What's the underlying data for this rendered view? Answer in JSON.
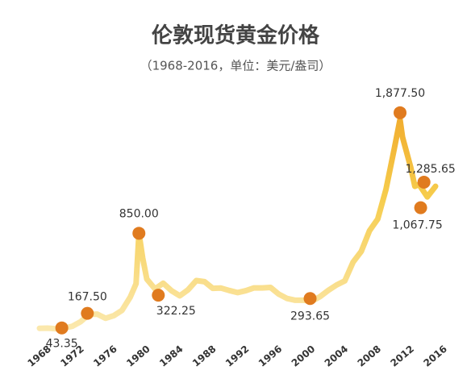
{
  "chart_data": {
    "type": "line",
    "title": "伦敦现货黄金价格",
    "subtitle": "（1968-2016，单位：美元/盎司）",
    "xlim": [
      1968,
      2016
    ],
    "xticks": [
      1968,
      1972,
      1976,
      1980,
      1984,
      1988,
      1992,
      1996,
      2000,
      2004,
      2008,
      2012,
      2016
    ],
    "ylim": [
      0,
      2000
    ],
    "series": [
      {
        "color": "#f6c445",
        "x": [
          1968,
          1969,
          1970,
          1971,
          1972,
          1973,
          1974,
          1975,
          1976,
          1977,
          1978,
          1979,
          1979.7,
          1980.05,
          1980.5,
          1981,
          1982,
          1983,
          1984,
          1985,
          1986,
          1987,
          1988,
          1989,
          1990,
          1991,
          1992,
          1993,
          1994,
          1995,
          1996,
          1997,
          1998,
          1999,
          2000,
          2001,
          2002,
          2003,
          2004,
          2005,
          2006,
          2007,
          2008,
          2009,
          2010,
          2011,
          2011.7,
          2012,
          2013,
          2013.5,
          2014,
          2015,
          2016
        ],
        "values": [
          40,
          41,
          36,
          41,
          58,
          97,
          159,
          161,
          125,
          148,
          193,
          306,
          420,
          850,
          640,
          460,
          375,
          424,
          360,
          317,
          368,
          447,
          437,
          381,
          383,
          362,
          344,
          360,
          384,
          384,
          388,
          331,
          294,
          279,
          279,
          271,
          310,
          363,
          409,
          444,
          603,
          695,
          872,
          972,
          1225,
          1572,
          1820,
          1669,
          1411,
          1250,
          1266,
          1160,
          1250
        ]
      }
    ],
    "annotations": {
      "color": "#e07b1f",
      "x": [
        1970.7,
        1973.8,
        1980.05,
        1982.4,
        2000.8,
        2011.7,
        2014.6,
        2014.2
      ],
      "values": [
        43.35,
        167.5,
        850,
        322.25,
        293.65,
        1877.5,
        1285.65,
        1067.75
      ],
      "value_labels": [
        "43.35",
        "167.50",
        "850.00",
        "322.25",
        "293.65",
        "1,877.50",
        "1,285.65",
        "1,067.75"
      ]
    }
  }
}
